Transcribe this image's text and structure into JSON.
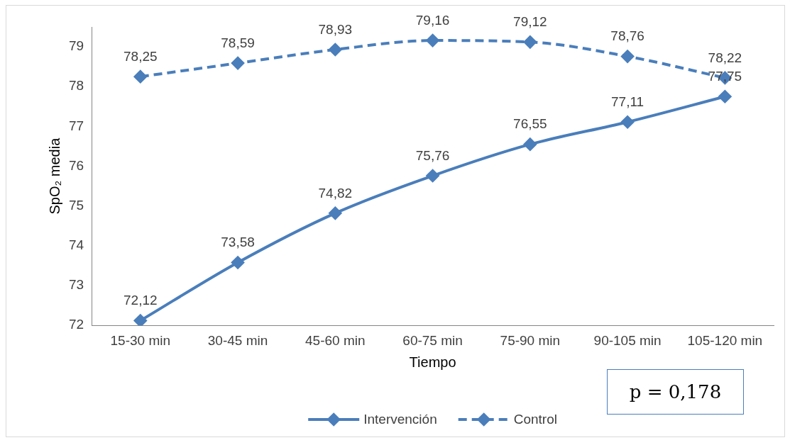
{
  "chart_data": {
    "type": "line",
    "xlabel": "Tiempo",
    "ylabel": "SpO₂ media",
    "categories": [
      "15-30 min",
      "30-45 min",
      "45-60 min",
      "60-75 min",
      "75-90 min",
      "90-105 min",
      "105-120 min"
    ],
    "series": [
      {
        "name": "Intervención",
        "color": "#4a7ebb",
        "line_style": "solid",
        "values": [
          72.12,
          73.58,
          74.82,
          75.76,
          76.55,
          77.11,
          77.75
        ],
        "value_labels": [
          "72,12",
          "73,58",
          "74,82",
          "75,76",
          "76,55",
          "77,11",
          "77,75"
        ]
      },
      {
        "name": "Control",
        "color": "#4a7ebb",
        "line_style": "dashed",
        "values": [
          78.25,
          78.59,
          78.93,
          79.16,
          79.12,
          78.76,
          78.22
        ],
        "value_labels": [
          "78,25",
          "78,59",
          "78,93",
          "79,16",
          "79,12",
          "78,76",
          "78,22"
        ]
      }
    ],
    "ylim": [
      72,
      79.5
    ],
    "yticks": [
      72,
      73,
      74,
      75,
      76,
      77,
      78,
      79
    ],
    "grid": false,
    "legend": "bottom",
    "marker": "diamond",
    "annotations": [
      "p = 0,178"
    ]
  }
}
